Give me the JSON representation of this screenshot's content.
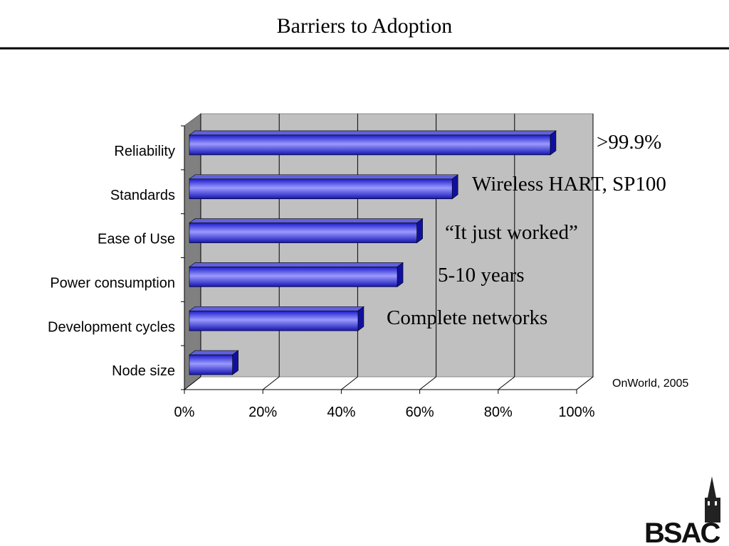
{
  "slide_title": "Barriers to Adoption",
  "chart_data": {
    "type": "bar3d",
    "orientation": "horizontal",
    "categories": [
      "Reliability",
      "Standards",
      "Ease of Use",
      "Power consumption",
      "Development cycles",
      "Node size"
    ],
    "values": [
      92,
      67,
      58,
      53,
      43,
      11
    ],
    "color": "#3a3ae6",
    "xlim": [
      0,
      100
    ],
    "xticks": [
      {
        "value": 0,
        "label": "0%"
      },
      {
        "value": 20,
        "label": "20%"
      },
      {
        "value": 40,
        "label": "40%"
      },
      {
        "value": 60,
        "label": "60%"
      },
      {
        "value": 80,
        "label": "80%"
      },
      {
        "value": 100,
        "label": "100%"
      }
    ],
    "grid": true,
    "annotations": [
      ">99.9%",
      "Wireless HART, SP100",
      "“It just worked”",
      "5-10 years",
      "Complete networks"
    ],
    "source": "OnWorld, 2005"
  },
  "logo": "BSAC"
}
